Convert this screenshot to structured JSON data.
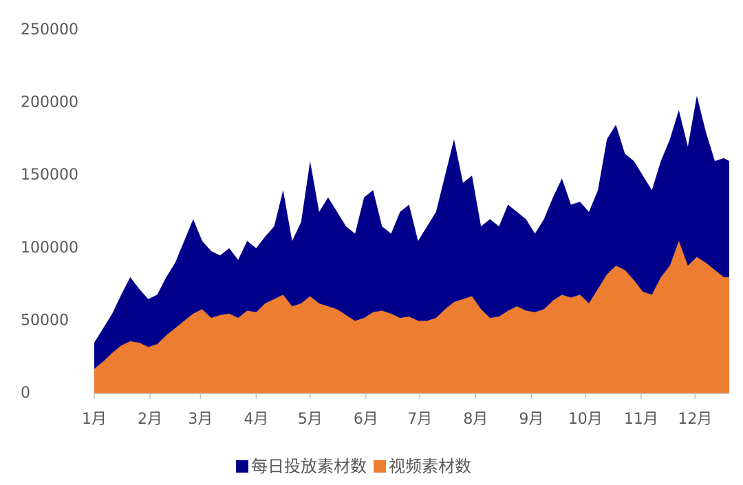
{
  "chart_data": {
    "type": "area",
    "x": [
      0,
      5,
      10,
      15,
      20,
      25,
      30,
      35,
      40,
      45,
      50,
      55,
      60,
      65,
      70,
      75,
      80,
      85,
      90,
      95,
      100,
      105,
      110,
      115,
      120,
      125,
      130,
      135,
      140,
      145,
      150,
      155,
      160,
      165,
      170,
      175,
      180,
      185,
      190,
      195,
      200,
      205,
      210,
      215,
      220,
      225,
      230,
      235,
      240,
      245,
      250,
      255,
      260,
      265,
      270,
      275,
      280,
      285,
      290,
      295,
      300,
      305,
      310,
      315,
      320,
      325,
      330,
      335,
      340,
      345,
      350,
      353
    ],
    "xlim": [
      0,
      353
    ],
    "xticks": [
      {
        "value": 0,
        "label": "1月"
      },
      {
        "value": 31,
        "label": "2月"
      },
      {
        "value": 59,
        "label": "3月"
      },
      {
        "value": 90,
        "label": "4月"
      },
      {
        "value": 120,
        "label": "5月"
      },
      {
        "value": 151,
        "label": "6月"
      },
      {
        "value": 181,
        "label": "7月"
      },
      {
        "value": 212,
        "label": "8月"
      },
      {
        "value": 243,
        "label": "9月"
      },
      {
        "value": 273,
        "label": "10月"
      },
      {
        "value": 304,
        "label": "11月"
      },
      {
        "value": 334,
        "label": "12月"
      }
    ],
    "ylim": [
      0,
      250000
    ],
    "yticks": [
      0,
      50000,
      100000,
      150000,
      200000,
      250000
    ],
    "grid": false,
    "legend": "bottom",
    "series": [
      {
        "name": "每日投放素材数",
        "color": "#00008b",
        "values": [
          35000,
          45000,
          55000,
          68000,
          80000,
          72000,
          65000,
          68000,
          80000,
          90000,
          105000,
          120000,
          105000,
          98000,
          95000,
          100000,
          92000,
          105000,
          100000,
          108000,
          115000,
          140000,
          105000,
          118000,
          160000,
          125000,
          135000,
          125000,
          115000,
          110000,
          135000,
          140000,
          115000,
          110000,
          125000,
          130000,
          105000,
          115000,
          125000,
          150000,
          175000,
          145000,
          150000,
          115000,
          120000,
          115000,
          130000,
          125000,
          120000,
          110000,
          120000,
          135000,
          148000,
          130000,
          132000,
          125000,
          140000,
          175000,
          185000,
          165000,
          160000,
          150000,
          140000,
          160000,
          175000,
          195000,
          170000,
          205000,
          180000,
          160000,
          162000,
          160000
        ]
      },
      {
        "name": "视频素材数",
        "color": "#ed7d31",
        "values": [
          17000,
          22000,
          28000,
          33000,
          36000,
          35000,
          32000,
          34000,
          40000,
          45000,
          50000,
          55000,
          58000,
          52000,
          54000,
          55000,
          52000,
          57000,
          56000,
          62000,
          65000,
          68000,
          60000,
          62000,
          67000,
          62000,
          60000,
          58000,
          54000,
          50000,
          52000,
          56000,
          57000,
          55000,
          52000,
          53000,
          50000,
          50000,
          52000,
          58000,
          63000,
          65000,
          67000,
          58000,
          52000,
          53000,
          57000,
          60000,
          57000,
          56000,
          58000,
          64000,
          68000,
          66000,
          68000,
          62000,
          72000,
          82000,
          88000,
          85000,
          78000,
          70000,
          68000,
          80000,
          88000,
          105000,
          88000,
          94000,
          90000,
          85000,
          80000,
          80000
        ]
      }
    ]
  }
}
